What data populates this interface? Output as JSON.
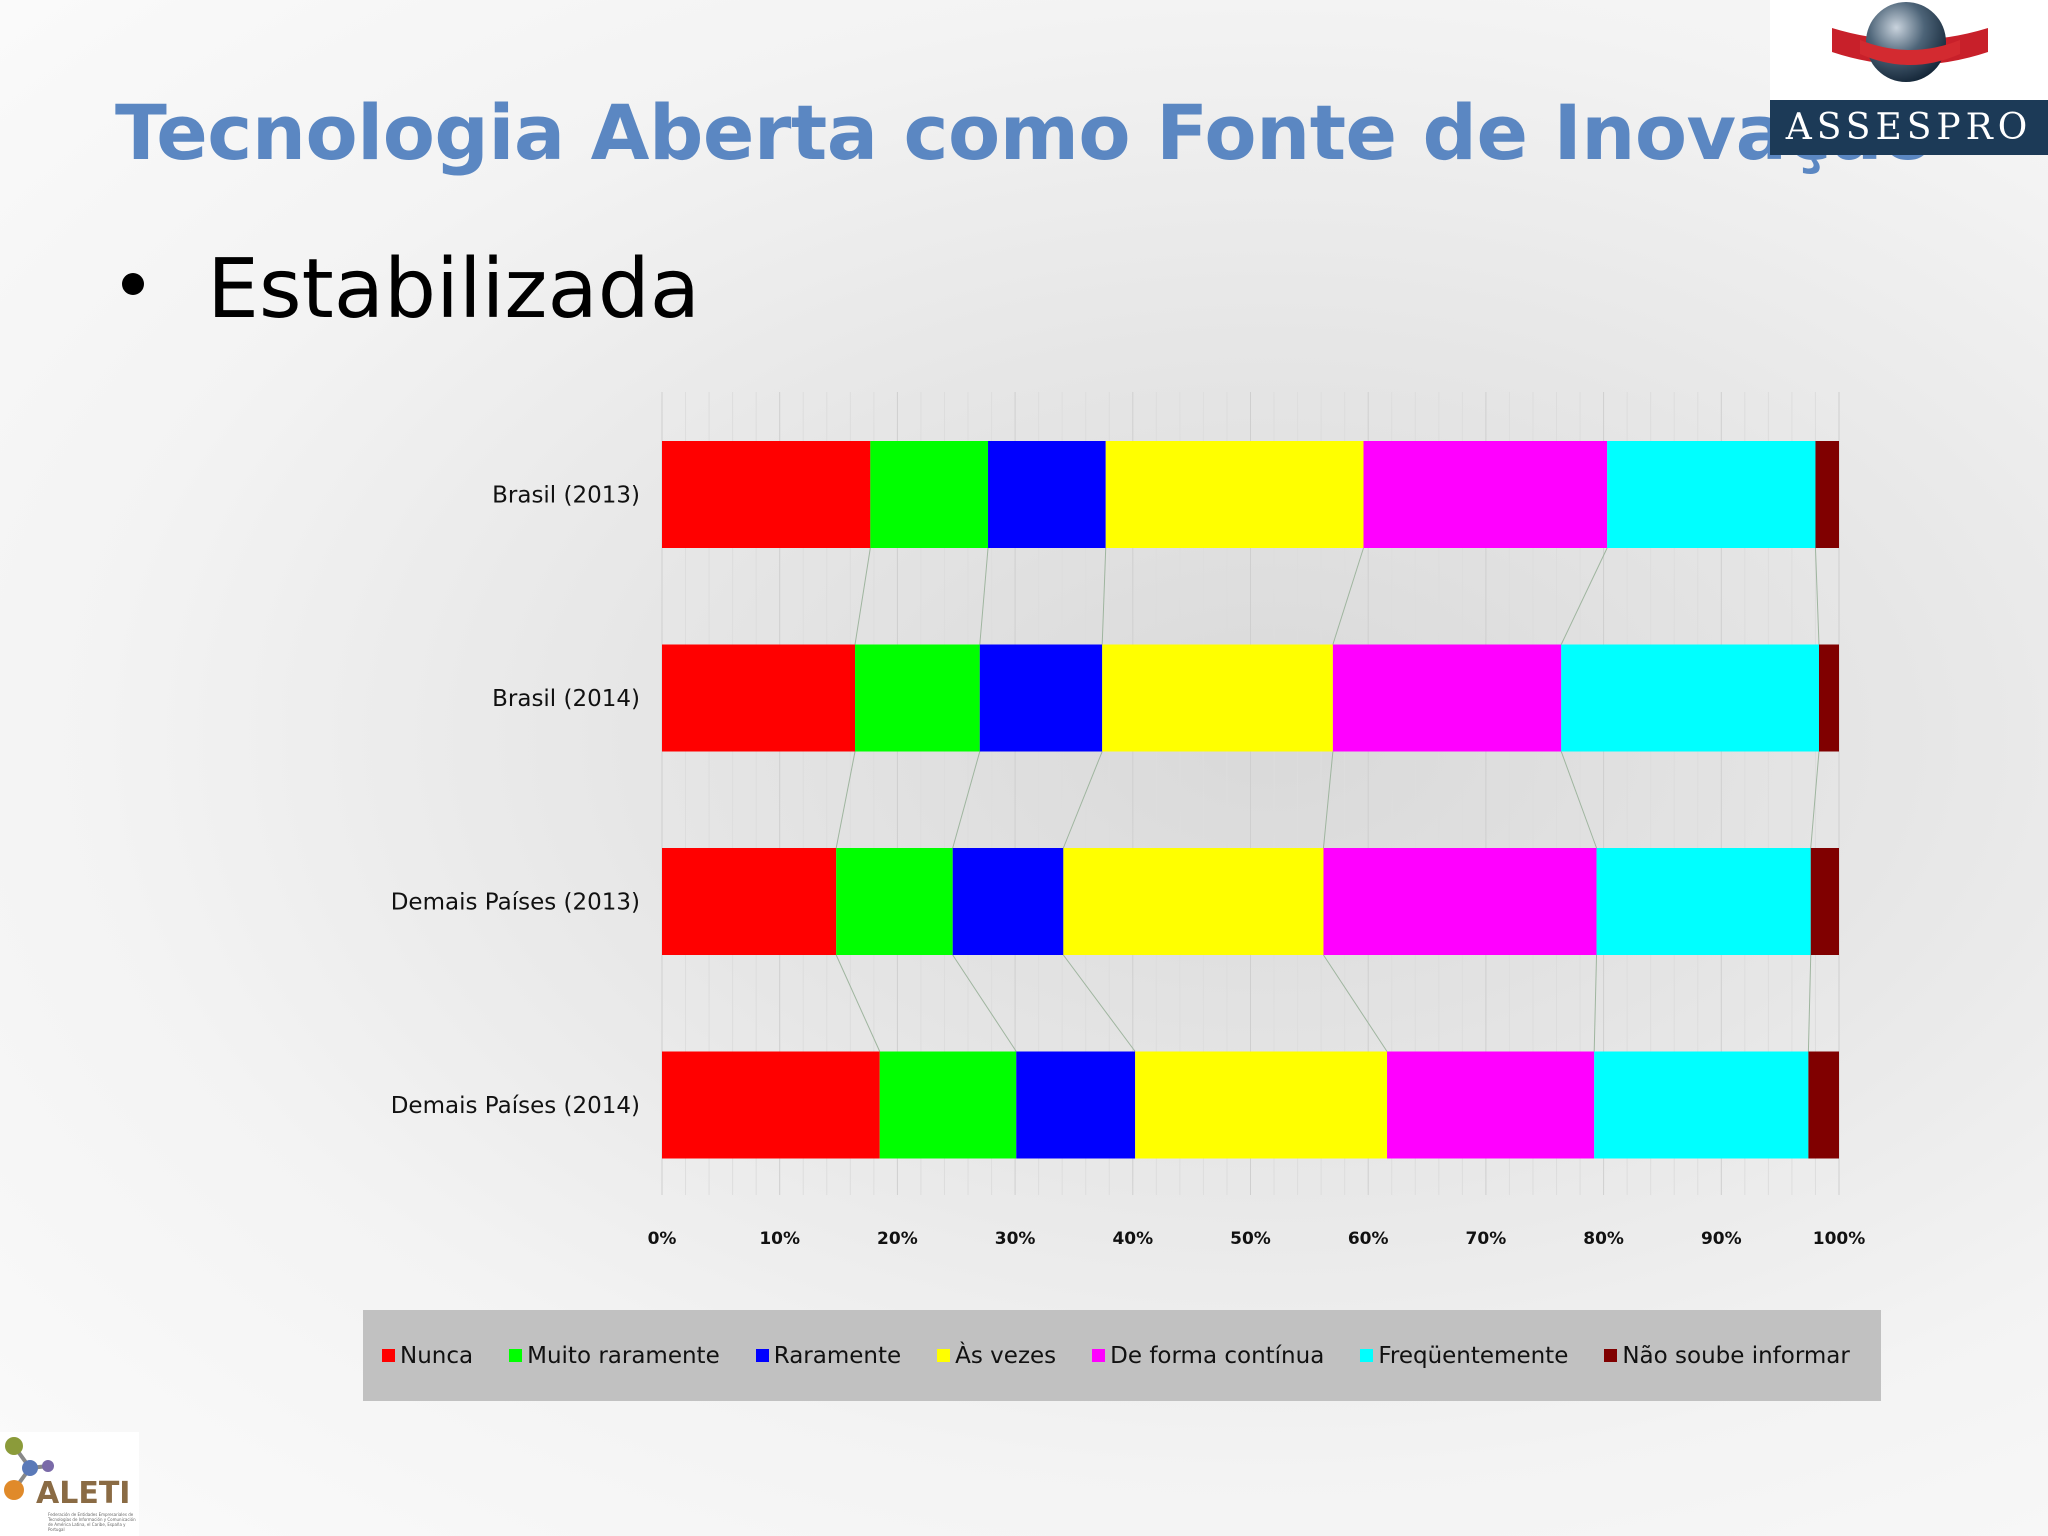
{
  "slide": {
    "title": "Tecnologia Aberta como Fonte de Inovação",
    "bullet": "Estabilizada"
  },
  "logos": {
    "assespro_text": "ASSESPRO",
    "aleti_text": "ALETI",
    "aleti_subtext": "Federación de Entidades Empresariales de Tecnologías de Información y Comunicación de América Latina, el Caribe, España y Portugal"
  },
  "chart_data": {
    "type": "bar",
    "orientation": "horizontal",
    "stacked": "percent",
    "categories": [
      "Brasil (2013)",
      "Brasil (2014)",
      "Demais Países (2013)",
      "Demais Países (2014)"
    ],
    "series": [
      {
        "name": "Nunca",
        "color": "#ff0000",
        "values": [
          17.7,
          16.4,
          14.8,
          18.5
        ]
      },
      {
        "name": "Muito raramente",
        "color": "#00ff00",
        "values": [
          10.0,
          10.6,
          9.9,
          11.6
        ]
      },
      {
        "name": "Raramente",
        "color": "#0000ff",
        "values": [
          10.0,
          10.4,
          9.4,
          10.1
        ]
      },
      {
        "name": "Às vezes",
        "color": "#ffff00",
        "values": [
          21.9,
          19.6,
          22.1,
          21.4
        ]
      },
      {
        "name": "De forma contínua",
        "color": "#ff00ff",
        "values": [
          20.7,
          19.4,
          23.2,
          17.6
        ]
      },
      {
        "name": "Freqüentemente",
        "color": "#00ffff",
        "values": [
          17.7,
          21.9,
          18.2,
          18.2
        ]
      },
      {
        "name": "Não soube informar",
        "color": "#800000",
        "values": [
          2.0,
          1.7,
          2.4,
          2.6
        ]
      }
    ],
    "xticks": [
      "0%",
      "10%",
      "20%",
      "30%",
      "40%",
      "50%",
      "60%",
      "70%",
      "80%",
      "90%",
      "100%"
    ],
    "xlim": [
      0,
      100
    ],
    "title": "",
    "xlabel": "",
    "ylabel": "",
    "grid": true,
    "legend_position": "bottom"
  }
}
